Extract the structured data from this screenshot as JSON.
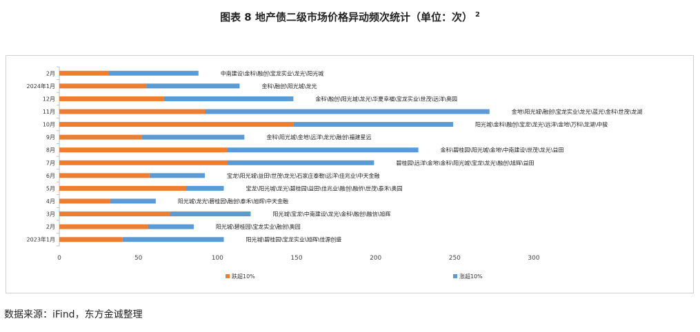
{
  "title": {
    "text": "图表 8    地产债二级市场价格异动频次统计（单位：次）",
    "superscript": "2"
  },
  "source": "数据来源：iFind，东方金诚整理",
  "colors": {
    "series1": "#ED7D31",
    "series2": "#5B9BD5",
    "axis": "#bfbfbf"
  },
  "chart_data": {
    "type": "bar",
    "orientation": "horizontal",
    "stacked": true,
    "categories": [
      "2月",
      "2024年1月",
      "12月",
      "11月",
      "10月",
      "9月",
      "8月",
      "7月",
      "6月",
      "5月",
      "4月",
      "3月",
      "2月",
      "2023年1月"
    ],
    "series": [
      {
        "name": "跌超10%",
        "values": [
          31,
          55,
          66,
          92,
          148,
          52,
          106,
          106,
          57,
          80,
          32,
          70,
          56,
          40
        ]
      },
      {
        "name": "涨超10%",
        "values": [
          57,
          59,
          82,
          180,
          101,
          65,
          121,
          93,
          35,
          24,
          29,
          51,
          29,
          64
        ]
      }
    ],
    "annotations": [
      "中南建设\\金科\\融创\\宝龙实业\\龙光\\阳光城",
      "金科\\融创\\阳光城\\龙光",
      "金科\\融创\\阳光城\\龙光\\华夏幸福\\宝龙实业\\世茂\\远洋\\奥园",
      "金地\\阳光城\\融创\\宝龙实业\\龙光\\蓝光\\金科\\世茂\\龙湖",
      "阳光城\\金科\\融创\\宝龙\\龙光\\远洋\\金地\\万科\\龙湖\\中骏",
      "金科\\阳光城\\金地\\远洋\\龙光\\融创\\福建星远",
      "金科\\碧桂园\\阳光城\\金地\\中南建设\\世茂\\龙光\\益田",
      "碧桂园\\远洋\\金地\\金科\\阳光城\\宝龙\\龙光\\融创\\旭辉\\益田",
      "宝龙\\阳光城\\益田\\世茂\\龙光\\石家庄泰勒\\远洋\\佳兆业\\中天金融",
      "宝龙\\阳光城\\龙光\\碧桂园\\益田\\佳兆业\\融创\\融侨\\世茂\\泰禾\\奥园",
      "阳光城\\龙光\\碧桂园\\融创\\泰禾\\旭辉\\中天金融",
      "阳光城\\宝龙\\中南建设\\龙光\\金科\\融创\\融信\\旭辉",
      "阳光城\\碧桂园\\宝龙实业\\融创\\奥园",
      "阳光城\\碧桂园\\宝龙实业\\旭辉\\佳源创盛"
    ],
    "xlim": [
      0,
      300
    ],
    "xticks": [
      0,
      50,
      100,
      150,
      200,
      250,
      300
    ],
    "legend_position": "bottom",
    "grid": false
  }
}
